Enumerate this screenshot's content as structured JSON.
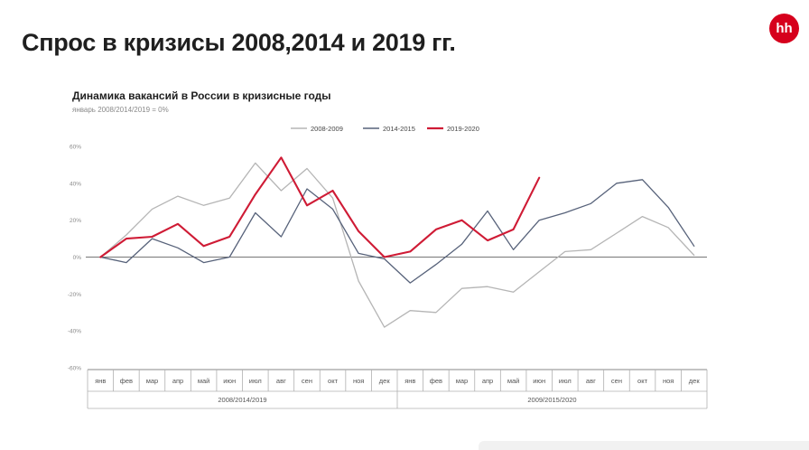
{
  "page": {
    "title": "Спрос в кризисы 2008,2014 и 2019 гг.",
    "logo_text": "hh"
  },
  "chart_data": {
    "type": "line",
    "title": "Динамика вакансий в России в кризисные годы",
    "subtitle": "январь 2008/2014/2019 = 0%",
    "y_ticks": [
      "60%",
      "40%",
      "20%",
      "0%",
      "-20%",
      "-40%",
      "-60%"
    ],
    "ylim": [
      -60,
      60
    ],
    "grid": false,
    "legend_position": "top-center",
    "categories": [
      "янв",
      "фев",
      "мар",
      "апр",
      "май",
      "июн",
      "июл",
      "авг",
      "сен",
      "окт",
      "ноя",
      "дек",
      "янв",
      "фев",
      "мар",
      "апр",
      "май",
      "июн",
      "июл",
      "авг",
      "сен",
      "окт",
      "ноя",
      "дек"
    ],
    "groups": [
      {
        "label": "2008/2014/2019",
        "span": 12
      },
      {
        "label": "2009/2015/2020",
        "span": 12
      }
    ],
    "series": [
      {
        "name": "2008-2009",
        "color": "#b5b5b5",
        "width": 1.3,
        "values": [
          0,
          12,
          26,
          33,
          28,
          32,
          51,
          36,
          48,
          32,
          -13,
          -38,
          -29,
          -30,
          -17,
          -16,
          -19,
          -8,
          3,
          4,
          13,
          22,
          16,
          1
        ]
      },
      {
        "name": "2014-2015",
        "color": "#57627a",
        "width": 1.3,
        "values": [
          0,
          -3,
          10,
          5,
          -3,
          0,
          24,
          11,
          37,
          26,
          2,
          -1,
          -14,
          -4,
          7,
          25,
          4,
          20,
          24,
          29,
          40,
          42,
          27,
          6
        ]
      },
      {
        "name": "2019-2020",
        "color": "#cf1b35",
        "width": 2.1,
        "values": [
          0,
          10,
          11,
          18,
          6,
          11,
          34,
          54,
          28,
          36,
          14,
          0,
          3,
          15,
          20,
          9,
          15,
          43,
          null,
          null,
          null,
          null,
          null,
          null
        ]
      }
    ]
  }
}
